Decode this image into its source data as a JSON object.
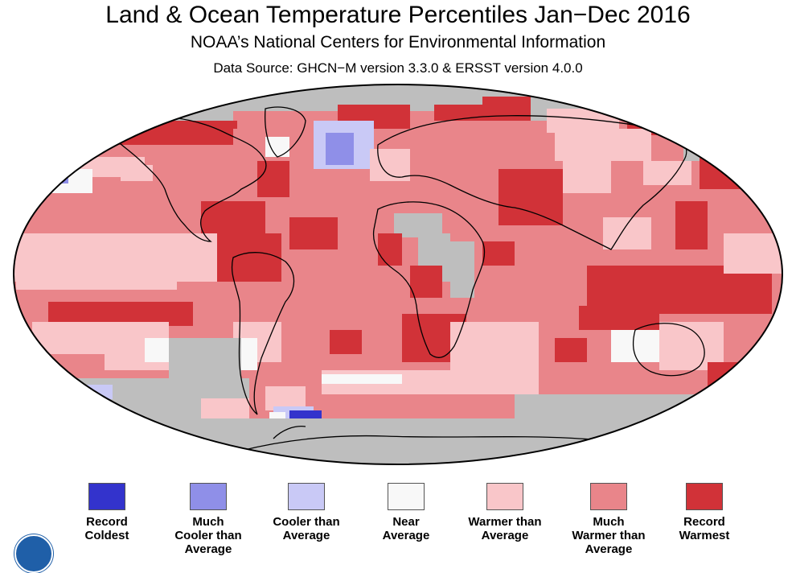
{
  "header": {
    "title": "Land & Ocean Temperature Percentiles Jan−Dec 2016",
    "subtitle": "NOAA’s National Centers for Environmental Information",
    "source": "Data Source: GHCN−M version 3.3.0 & ERSST version 4.0.0"
  },
  "legend": {
    "items": [
      {
        "label": "Record\nColdest",
        "color": "#3333cc"
      },
      {
        "label": "Much\nCooler than\nAverage",
        "color": "#8f8fe8"
      },
      {
        "label": "Cooler than\nAverage",
        "color": "#c9c9f6"
      },
      {
        "label": "Near\nAverage",
        "color": "#f8f8f8"
      },
      {
        "label": "Warmer than\nAverage",
        "color": "#f9c6c9"
      },
      {
        "label": "Much\nWarmer than\nAverage",
        "color": "#e9858a"
      },
      {
        "label": "Record\nWarmest",
        "color": "#d13238"
      }
    ]
  },
  "map_colors": {
    "no_data": "#bebebe",
    "record_coldest": "#3333cc",
    "much_cooler": "#8f8fe8",
    "cooler": "#c9c9f6",
    "near": "#f8f8f8",
    "warmer": "#f9c6c9",
    "much_warmer": "#e9858a",
    "record_warmest": "#d13238",
    "coastline": "#000000"
  },
  "logo": {
    "icon": "noaa-logo-icon"
  }
}
